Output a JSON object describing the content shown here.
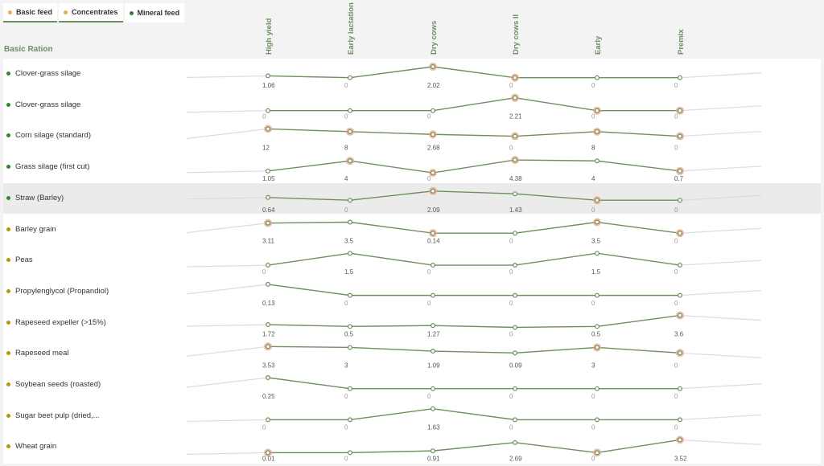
{
  "tabs": [
    {
      "label": "Basic feed",
      "color": "#e0b24a",
      "active": false
    },
    {
      "label": "Concentrates",
      "color": "#e0b24a",
      "active": false
    },
    {
      "label": "Mineral feed",
      "color": "#3c7a3c",
      "active": true
    }
  ],
  "section_title": "Basic Ration",
  "columns": [
    "High yield",
    "Early lactation",
    "Dry cows",
    "Dry cows II",
    "Early",
    "Premix"
  ],
  "colors": {
    "green_dot": "#2a8a2a",
    "gold_dot": "#b8960a",
    "line": "#6e8f62",
    "highlight_point": "#e9a480"
  },
  "rows": [
    {
      "label": "Clover-grass silage",
      "dot": "green",
      "values": [
        "1.06",
        "0",
        "2.02",
        "0",
        "0",
        "0"
      ],
      "levels": [
        0.5,
        0.4,
        1.0,
        0.4,
        0.4,
        0.4
      ],
      "hl": [
        false,
        false,
        true,
        true,
        false,
        false
      ],
      "selected": false
    },
    {
      "label": "Clover-grass silage",
      "dot": "green",
      "values": [
        "0",
        "0",
        "0",
        "2.21",
        "0",
        "0"
      ],
      "levels": [
        0.3,
        0.3,
        0.3,
        1.0,
        0.3,
        0.3
      ],
      "hl": [
        false,
        false,
        false,
        true,
        true,
        true
      ],
      "selected": false
    },
    {
      "label": "Corn silage (standard)",
      "dot": "green",
      "values": [
        "12",
        "8",
        "2.68",
        "0",
        "8",
        "0"
      ],
      "levels": [
        1.0,
        0.85,
        0.7,
        0.6,
        0.85,
        0.6
      ],
      "hl": [
        true,
        true,
        true,
        true,
        true,
        true
      ],
      "selected": false
    },
    {
      "label": "Grass silage (first cut)",
      "dot": "green",
      "values": [
        "1.05",
        "4",
        "0",
        "4.38",
        "4",
        "0.7"
      ],
      "levels": [
        0.4,
        0.95,
        0.3,
        1.0,
        0.95,
        0.4
      ],
      "hl": [
        false,
        true,
        true,
        true,
        false,
        true
      ],
      "selected": false
    },
    {
      "label": "Straw (Barley)",
      "dot": "green",
      "values": [
        "0.64",
        "0",
        "2.09",
        "1.43",
        "0",
        "0"
      ],
      "levels": [
        0.65,
        0.5,
        1.0,
        0.85,
        0.5,
        0.5
      ],
      "hl": [
        false,
        false,
        true,
        false,
        true,
        false
      ],
      "selected": true
    },
    {
      "label": "Barley grain",
      "dot": "gold",
      "values": [
        "3.11",
        "3.5",
        "0.14",
        "0",
        "3.5",
        "0"
      ],
      "levels": [
        0.95,
        1.0,
        0.4,
        0.4,
        1.0,
        0.4
      ],
      "hl": [
        true,
        false,
        true,
        false,
        true,
        true
      ],
      "selected": false
    },
    {
      "label": "Peas",
      "dot": "gold",
      "values": [
        "0",
        "1.5",
        "0",
        "0",
        "1.5",
        "0"
      ],
      "levels": [
        0.35,
        1.0,
        0.35,
        0.35,
        1.0,
        0.35
      ],
      "hl": [
        false,
        false,
        false,
        false,
        false,
        false
      ],
      "selected": false
    },
    {
      "label": "Propylenglycol (Propandiol)",
      "dot": "gold",
      "values": [
        "0.13",
        "0",
        "0",
        "0",
        "0",
        "0"
      ],
      "levels": [
        1.0,
        0.4,
        0.4,
        0.4,
        0.4,
        0.4
      ],
      "hl": [
        false,
        false,
        false,
        false,
        false,
        false
      ],
      "selected": false
    },
    {
      "label": "Rapeseed expeller (>15%)",
      "dot": "gold",
      "values": [
        "1.72",
        "0.5",
        "1.27",
        "0",
        "0.5",
        "3.6"
      ],
      "levels": [
        0.5,
        0.4,
        0.45,
        0.35,
        0.4,
        1.0
      ],
      "hl": [
        false,
        false,
        false,
        false,
        false,
        true
      ],
      "selected": false
    },
    {
      "label": "Rapeseed meal",
      "dot": "gold",
      "values": [
        "3.53",
        "3",
        "1.09",
        "0.09",
        "3",
        "0"
      ],
      "levels": [
        1.0,
        0.95,
        0.75,
        0.65,
        0.95,
        0.65
      ],
      "hl": [
        true,
        false,
        false,
        false,
        true,
        true
      ],
      "selected": false
    },
    {
      "label": "Soybean seeds (roasted)",
      "dot": "gold",
      "values": [
        "0.25",
        "0",
        "0",
        "0",
        "0",
        "0"
      ],
      "levels": [
        1.0,
        0.4,
        0.4,
        0.4,
        0.4,
        0.4
      ],
      "hl": [
        false,
        false,
        false,
        false,
        false,
        false
      ],
      "selected": false
    },
    {
      "label": "Sugar beet pulp (dried,...",
      "dot": "gold",
      "values": [
        "0",
        "0",
        "1.63",
        "0",
        "0",
        "0"
      ],
      "levels": [
        0.4,
        0.4,
        1.0,
        0.4,
        0.4,
        0.4
      ],
      "hl": [
        false,
        false,
        false,
        false,
        false,
        false
      ],
      "selected": false
    },
    {
      "label": "Wheat grain",
      "dot": "gold",
      "values": [
        "0.01",
        "0",
        "0.91",
        "2.69",
        "0",
        "3.52"
      ],
      "levels": [
        0.3,
        0.3,
        0.4,
        0.85,
        0.3,
        1.0
      ],
      "hl": [
        true,
        false,
        false,
        false,
        true,
        true
      ],
      "selected": false
    }
  ]
}
